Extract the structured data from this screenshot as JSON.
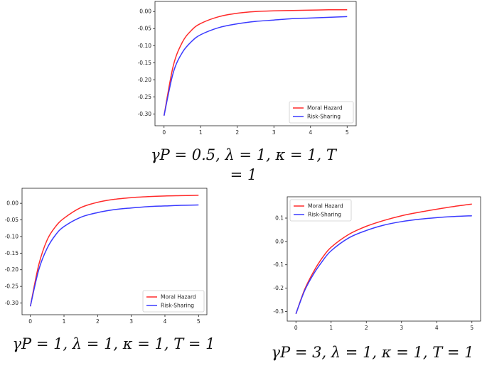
{
  "figure": {
    "series_names": [
      "Moral Hazard",
      "Risk-Sharing"
    ],
    "series_colors": [
      "#ff2a2a",
      "#3a3aff"
    ]
  },
  "captions": [
    "γP = 0.5, λ = 1, κ = 1, T = 1",
    "γP = 1, λ = 1, κ = 1, T = 1",
    "γP = 3, λ = 1, κ = 1, T = 1"
  ],
  "chart_data": [
    {
      "type": "line",
      "xlim": [
        0,
        5
      ],
      "ylim": [
        -0.32,
        0.015
      ],
      "xticks": [
        0,
        1,
        2,
        3,
        4,
        5
      ],
      "yticks": [
        0.0,
        -0.05,
        -0.1,
        -0.15,
        -0.2,
        -0.25,
        -0.3
      ],
      "ytick_labels": [
        "0.00",
        "-0.05",
        "-0.10",
        "-0.15",
        "-0.20",
        "-0.25",
        "-0.30"
      ],
      "legend": "lower-right",
      "grid": false,
      "series": [
        {
          "name": "Moral Hazard",
          "color": "#ff2a2a",
          "x": [
            0,
            0.25,
            0.5,
            0.75,
            1,
            1.5,
            2,
            2.5,
            3,
            3.5,
            4,
            4.5,
            5
          ],
          "y": [
            -0.305,
            -0.16,
            -0.09,
            -0.055,
            -0.035,
            -0.015,
            -0.005,
            0.0,
            0.002,
            0.003,
            0.004,
            0.005,
            0.005
          ]
        },
        {
          "name": "Risk-Sharing",
          "color": "#3a3aff",
          "x": [
            0,
            0.25,
            0.5,
            0.75,
            1,
            1.5,
            2,
            2.5,
            3,
            3.5,
            4,
            4.5,
            5
          ],
          "y": [
            -0.305,
            -0.18,
            -0.12,
            -0.088,
            -0.068,
            -0.047,
            -0.036,
            -0.029,
            -0.025,
            -0.021,
            -0.019,
            -0.017,
            -0.015
          ]
        }
      ]
    },
    {
      "type": "line",
      "xlim": [
        0,
        5
      ],
      "ylim": [
        -0.32,
        0.03
      ],
      "xticks": [
        0,
        1,
        2,
        3,
        4,
        5
      ],
      "yticks": [
        0.0,
        -0.05,
        -0.1,
        -0.15,
        -0.2,
        -0.25,
        -0.3
      ],
      "ytick_labels": [
        "0.00",
        "-0.05",
        "-0.10",
        "-0.15",
        "-0.20",
        "-0.25",
        "-0.30"
      ],
      "legend": "lower-right",
      "grid": false,
      "series": [
        {
          "name": "Moral Hazard",
          "color": "#ff2a2a",
          "x": [
            0,
            0.25,
            0.5,
            0.75,
            1,
            1.5,
            2,
            2.5,
            3,
            3.5,
            4,
            4.5,
            5
          ],
          "y": [
            -0.31,
            -0.185,
            -0.11,
            -0.07,
            -0.045,
            -0.013,
            0.003,
            0.012,
            0.017,
            0.02,
            0.022,
            0.023,
            0.024
          ]
        },
        {
          "name": "Risk-Sharing",
          "color": "#3a3aff",
          "x": [
            0,
            0.25,
            0.5,
            0.75,
            1,
            1.5,
            2,
            2.5,
            3,
            3.5,
            4,
            4.5,
            5
          ],
          "y": [
            -0.31,
            -0.2,
            -0.135,
            -0.095,
            -0.07,
            -0.042,
            -0.028,
            -0.019,
            -0.014,
            -0.01,
            -0.008,
            -0.006,
            -0.005
          ]
        }
      ]
    },
    {
      "type": "line",
      "xlim": [
        0,
        5
      ],
      "ylim": [
        -0.32,
        0.17
      ],
      "xticks": [
        0,
        1,
        2,
        3,
        4,
        5
      ],
      "yticks": [
        0.1,
        0.0,
        -0.1,
        -0.2,
        -0.3
      ],
      "ytick_labels": [
        "0.1",
        "0.0",
        "-0.1",
        "-0.2",
        "-0.3"
      ],
      "legend": "upper-left",
      "grid": false,
      "series": [
        {
          "name": "Moral Hazard",
          "color": "#ff2a2a",
          "x": [
            0,
            0.25,
            0.5,
            0.75,
            1,
            1.5,
            2,
            2.5,
            3,
            3.5,
            4,
            4.5,
            5
          ],
          "y": [
            -0.31,
            -0.205,
            -0.13,
            -0.07,
            -0.025,
            0.03,
            0.065,
            0.09,
            0.11,
            0.125,
            0.138,
            0.15,
            0.16
          ]
        },
        {
          "name": "Risk-Sharing",
          "color": "#3a3aff",
          "x": [
            0,
            0.25,
            0.5,
            0.75,
            1,
            1.5,
            2,
            2.5,
            3,
            3.5,
            4,
            4.5,
            5
          ],
          "y": [
            -0.31,
            -0.21,
            -0.14,
            -0.085,
            -0.04,
            0.015,
            0.047,
            0.07,
            0.085,
            0.095,
            0.102,
            0.107,
            0.11
          ]
        }
      ]
    }
  ]
}
